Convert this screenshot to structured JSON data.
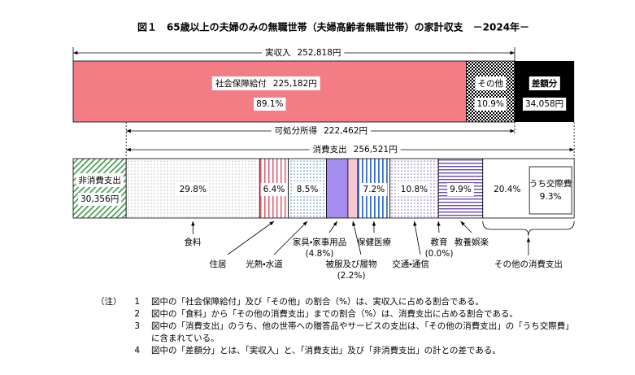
{
  "title": "図１　65歳以上の夫婦のみの無職世帯（夫婦高齢者無職世帯）の家計収支　－2024年－",
  "income": {
    "label": "実収入",
    "amount": {
      "value": 252818,
      "label": "252,818円"
    }
  },
  "social_security": {
    "label": "社会保障給付",
    "amount": {
      "value": 225182,
      "label": "225,182円"
    },
    "share": {
      "value": 89.1,
      "label": "89.1%"
    }
  },
  "other_income": {
    "label": "その他",
    "share": {
      "value": 10.9,
      "label": "10.9%"
    }
  },
  "deficit": {
    "label": "差額分",
    "amount": {
      "value": 34058,
      "label": "34,058円"
    }
  },
  "disposable_income": {
    "label": "可処分所得",
    "amount": {
      "value": 222462,
      "label": "222,462円"
    }
  },
  "consumption": {
    "label": "消費支出",
    "amount": {
      "value": 256521,
      "label": "256,521円"
    }
  },
  "non_consumption": {
    "label": "非消費支出",
    "amount": {
      "value": 30356,
      "label": "30,356円"
    }
  },
  "items": [
    {
      "label": "食料",
      "share": {
        "value": 29.8,
        "label": "29.8%"
      }
    },
    {
      "label": "住居",
      "share": {
        "value": 6.4,
        "label": "6.4%"
      }
    },
    {
      "label": "光熱・水道",
      "share": {
        "value": 8.5,
        "label": "8.5%"
      }
    },
    {
      "label": "家具・家事用品",
      "share": {
        "value": 4.8,
        "label": "(4.8%)"
      }
    },
    {
      "label": "被服及び履物",
      "share": {
        "value": 2.2,
        "label": "(2.2%)"
      }
    },
    {
      "label": "保健医療",
      "share": {
        "value": 7.2,
        "label": "7.2%"
      }
    },
    {
      "label": "交通・通信",
      "share": {
        "value": 10.8,
        "label": "10.8%"
      }
    },
    {
      "label": "教育",
      "share": {
        "value": 0.0,
        "label": "(0.0%)"
      }
    },
    {
      "label": "教養娯楽",
      "share": {
        "value": 9.9,
        "label": "9.9%"
      }
    },
    {
      "label": "その他の消費支出",
      "share": {
        "value": 20.4,
        "label": "20.4%"
      }
    }
  ],
  "social_expense": {
    "label": "うち交際費",
    "share": {
      "value": 9.3,
      "label": "9.3%"
    }
  },
  "notes_marker": "（注）",
  "notes": [
    {
      "number": "1",
      "text": "図中の「社会保障給付」及び「その他」の割合（%）は、実収入に占める割合である。"
    },
    {
      "number": "2",
      "text": "図中の「食料」から「その他の消費支出」までの割合（%）は、消費支出に占める割合である。"
    },
    {
      "number": "3",
      "text": "図中の「消費支出」のうち、他の世帯への贈答品やサービスの支出は、「その他の消費支出」の「うち交際費」に含まれている。"
    },
    {
      "number": "4",
      "text": "図中の「差額分」とは、「実収入」と、「消費支出」及び「非消費支出」の計との差である。"
    }
  ]
}
